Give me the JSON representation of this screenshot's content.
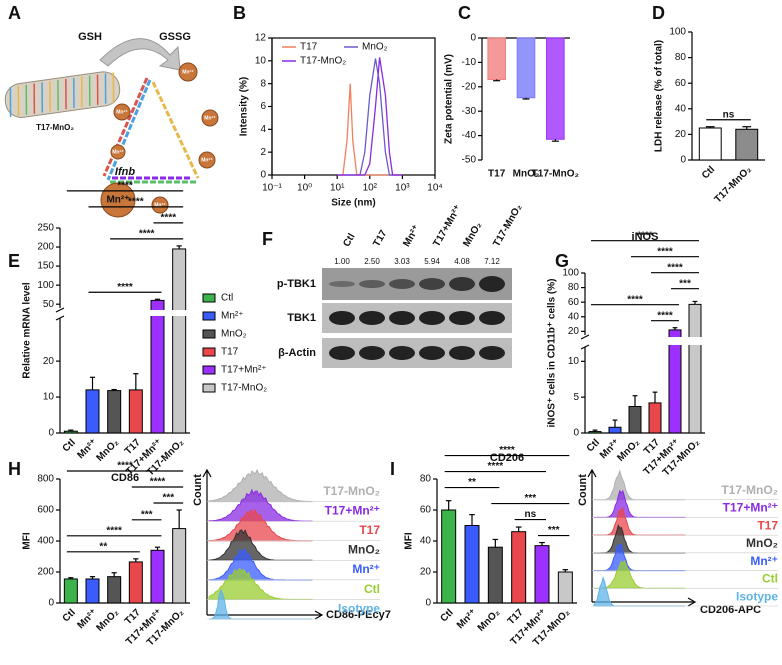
{
  "diagram": {
    "panel": "A",
    "labels": [
      "GSH",
      "GSSG",
      "T17-MnO₂"
    ],
    "ions": [
      "Mn²⁺",
      "Mn²⁺",
      "Mn²⁺",
      "Mn²⁺",
      "Mn²⁺",
      "Mn²⁺"
    ],
    "big_ion": "Mn²⁺"
  },
  "chart_data": [
    {
      "panel": "B",
      "type": "line",
      "xlabel": "Size (nm)",
      "ylabel": "Intensity (%)",
      "x": [
        10,
        15,
        20,
        25,
        30,
        40,
        50,
        70,
        100,
        150,
        200,
        300,
        400,
        500,
        700,
        1000
      ],
      "xlog": true,
      "xlim": [
        0.1,
        10000
      ],
      "xticks": [
        {
          "value": 0.1,
          "label": "10⁻¹"
        },
        {
          "value": 1,
          "label": "10⁰"
        },
        {
          "value": 10,
          "label": "10¹"
        },
        {
          "value": 100,
          "label": "10²"
        },
        {
          "value": 1000,
          "label": "10³"
        },
        {
          "value": 10000,
          "label": "10⁴"
        }
      ],
      "ylim": [
        0,
        12
      ],
      "yticks": [
        0,
        2,
        4,
        6,
        8,
        10,
        12
      ],
      "series": [
        {
          "name": "T17",
          "color": "#f08060",
          "values": [
            0,
            0,
            3,
            8,
            3,
            0,
            0,
            0,
            0,
            0,
            0,
            0,
            0,
            0,
            0,
            0
          ]
        },
        {
          "name": "MnO₂",
          "color": "#6a5acd",
          "values": [
            0,
            0,
            0,
            0,
            0,
            0,
            0,
            2,
            7,
            10.2,
            8,
            2,
            0,
            0,
            0,
            0
          ]
        },
        {
          "name": "T17-MnO₂",
          "color": "#8a2be2",
          "values": [
            0,
            0,
            0,
            0,
            0,
            0,
            0,
            0,
            1,
            6,
            10.3,
            7,
            2,
            0,
            0,
            0
          ]
        }
      ],
      "legend": "top-left"
    },
    {
      "panel": "C",
      "type": "bar",
      "ylabel": "Zeta potential (mV)",
      "categories": [
        "T17",
        "MnO₂",
        "T17-MnO₂"
      ],
      "values": [
        -17,
        -24.5,
        -41.5
      ],
      "errors": [
        0.5,
        0.5,
        0.8
      ],
      "colors": [
        "#f08080",
        "#7b7bff",
        "#9b30ff"
      ],
      "ylim": [
        -50,
        0
      ],
      "yticks": [
        -50,
        -40,
        -30,
        -20,
        -10,
        0
      ]
    },
    {
      "panel": "D",
      "type": "bar",
      "ylabel": "LDH release (% of total)",
      "categories": [
        "Ctl",
        "T17-MnO₂"
      ],
      "values": [
        25,
        24
      ],
      "errors": [
        1,
        2
      ],
      "colors": [
        "#ffffff",
        "#8c8c8c"
      ],
      "outline": "#000000",
      "ylim": [
        0,
        100
      ],
      "yticks": [
        0,
        20,
        40,
        60,
        80,
        100
      ],
      "annotations": [
        {
          "from": "Ctl",
          "to": "T17-MnO₂",
          "text": "ns"
        }
      ]
    },
    {
      "panel": "E",
      "type": "bar",
      "title": "Ifnb",
      "ylabel": "Relative mRNA level",
      "categories": [
        "Ctl",
        "Mn²⁺",
        "MnO₂",
        "T17",
        "T17+Mn²⁺",
        "T17-MnO₂"
      ],
      "values": [
        0.5,
        12,
        11.8,
        12,
        60,
        195
      ],
      "errors": [
        0.3,
        3.5,
        0.3,
        4.5,
        3,
        8
      ],
      "colors": [
        "#3cb44b",
        "#3a5cff",
        "#555555",
        "#e8474c",
        "#9b30ff",
        "#c8c8c8"
      ],
      "outline": "#000000",
      "ylim": [
        0,
        250
      ],
      "ybreak": [
        32,
        40
      ],
      "yticks": [
        0,
        10,
        20,
        50,
        100,
        150,
        200,
        250
      ],
      "legend": "right",
      "annotations": [
        {
          "from": "Mn²⁺",
          "to": "T17+Mn²⁺",
          "text": "****"
        },
        {
          "from": "MnO₂",
          "to": "T17-MnO₂",
          "text": "****"
        },
        {
          "from": "T17+Mn²⁺",
          "to": "T17-MnO₂",
          "text": "****"
        },
        {
          "from": "Mn²⁺",
          "to": "T17-MnO₂",
          "text": "****"
        },
        {
          "from": "Ctl",
          "to": "T17-MnO₂",
          "text": "****"
        }
      ]
    },
    {
      "panel": "G",
      "type": "bar",
      "title": "iNOS",
      "ylabel": "iNOS⁺ cells in CD11b⁺ cells (%)",
      "categories": [
        "Ctl",
        "Mn²⁺",
        "MnO₂",
        "T17",
        "T17+Mn²⁺",
        "T17-MnO₂"
      ],
      "values": [
        0.2,
        0.8,
        3.7,
        4.2,
        22,
        57
      ],
      "errors": [
        0.2,
        1,
        1.5,
        1.5,
        3,
        4
      ],
      "colors": [
        "#3cb44b",
        "#3a5cff",
        "#555555",
        "#e8474c",
        "#9b30ff",
        "#c8c8c8"
      ],
      "outline": "#000000",
      "ylim": [
        0,
        100
      ],
      "ybreak": [
        12,
        15
      ],
      "yticks": [
        0,
        5,
        10,
        20,
        40,
        60,
        80,
        100
      ],
      "annotations": [
        {
          "from": "T17",
          "to": "T17+Mn²⁺",
          "text": "****"
        },
        {
          "from": "Ctl",
          "to": "T17+Mn²⁺",
          "text": "****"
        },
        {
          "from": "T17+Mn²⁺",
          "to": "T17-MnO₂",
          "text": "***"
        },
        {
          "from": "T17",
          "to": "T17-MnO₂",
          "text": "****"
        },
        {
          "from": "MnO₂",
          "to": "T17-MnO₂",
          "text": "****"
        },
        {
          "from": "Ctl",
          "to": "T17-MnO₂",
          "text": "****"
        }
      ]
    },
    {
      "panel": "H",
      "type": "bar",
      "title": "CD86",
      "ylabel": "MFI",
      "categories": [
        "Ctl",
        "Mn²⁺",
        "MnO₂",
        "T17",
        "T17+Mn²⁺",
        "T17-MnO₂"
      ],
      "values": [
        155,
        155,
        170,
        265,
        340,
        480
      ],
      "errors": [
        8,
        15,
        25,
        20,
        20,
        120
      ],
      "colors": [
        "#3cb44b",
        "#3a5cff",
        "#555555",
        "#e8474c",
        "#9b30ff",
        "#c8c8c8"
      ],
      "outline": "#000000",
      "ylim": [
        0,
        800
      ],
      "yticks": [
        0,
        200,
        400,
        600,
        800
      ],
      "annotations": [
        {
          "from": "Ctl",
          "to": "T17",
          "text": "**"
        },
        {
          "from": "Ctl",
          "to": "T17+Mn²⁺",
          "text": "****"
        },
        {
          "from": "T17",
          "to": "T17+Mn²⁺",
          "text": "***"
        },
        {
          "from": "T17+Mn²⁺",
          "to": "T17-MnO₂",
          "text": "***"
        },
        {
          "from": "T17",
          "to": "T17-MnO₂",
          "text": "****"
        },
        {
          "from": "Ctl",
          "to": "T17-MnO₂",
          "text": "****"
        }
      ]
    },
    {
      "panel": "I",
      "type": "bar",
      "title": "CD206",
      "ylabel": "MFI",
      "categories": [
        "Ctl",
        "Mn²⁺",
        "MnO₂",
        "T17",
        "T17+Mn²⁺",
        "T17-MnO₂"
      ],
      "values": [
        60,
        50,
        36,
        46,
        37,
        20
      ],
      "errors": [
        6,
        7,
        5,
        3,
        2,
        1.5
      ],
      "colors": [
        "#3cb44b",
        "#3a5cff",
        "#555555",
        "#e8474c",
        "#9b30ff",
        "#c8c8c8"
      ],
      "outline": "#000000",
      "ylim": [
        0,
        80
      ],
      "yticks": [
        0,
        20,
        40,
        60,
        80
      ],
      "annotations": [
        {
          "from": "T17+Mn²⁺",
          "to": "T17-MnO₂",
          "text": "***"
        },
        {
          "from": "T17",
          "to": "T17+Mn²⁺",
          "text": "ns"
        },
        {
          "from": "MnO₂",
          "to": "T17-MnO₂",
          "text": "***"
        },
        {
          "from": "Ctl",
          "to": "MnO₂",
          "text": "**"
        },
        {
          "from": "Ctl",
          "to": "T17+Mn²⁺",
          "text": "****"
        },
        {
          "from": "Ctl",
          "to": "T17-MnO₂",
          "text": "****"
        }
      ]
    }
  ],
  "blot": {
    "panel": "F",
    "lanes": [
      "Ctl",
      "T17",
      "Mn²⁺",
      "T17+Mn²⁺",
      "MnO₂",
      "T17-MnO₂"
    ],
    "quantification": [
      "1.00",
      "2.50",
      "3.03",
      "5.94",
      "4.08",
      "7.12"
    ],
    "rows": [
      "p-TBK1",
      "TBK1",
      "β-Actin"
    ]
  },
  "flow": [
    {
      "ylabel": "Count",
      "xlabel": "CD86-PEcy7",
      "labels": [
        "T17-MnO₂",
        "T17+Mn²⁺",
        "T17",
        "MnO₂",
        "Mn²⁺",
        "Ctl",
        "Isotype"
      ],
      "colors": [
        "#b0b0b0",
        "#8a2be2",
        "#e8474c",
        "#333333",
        "#3a5cff",
        "#9acd32",
        "#5fb4e8"
      ]
    },
    {
      "ylabel": "Count",
      "xlabel": "CD206-APC",
      "labels": [
        "T17-MnO₂",
        "T17+Mn²⁺",
        "T17",
        "MnO₂",
        "Mn²⁺",
        "Ctl",
        "Isotype"
      ],
      "colors": [
        "#b0b0b0",
        "#8a2be2",
        "#e8474c",
        "#333333",
        "#3a5cff",
        "#9acd32",
        "#5fb4e8"
      ]
    }
  ]
}
